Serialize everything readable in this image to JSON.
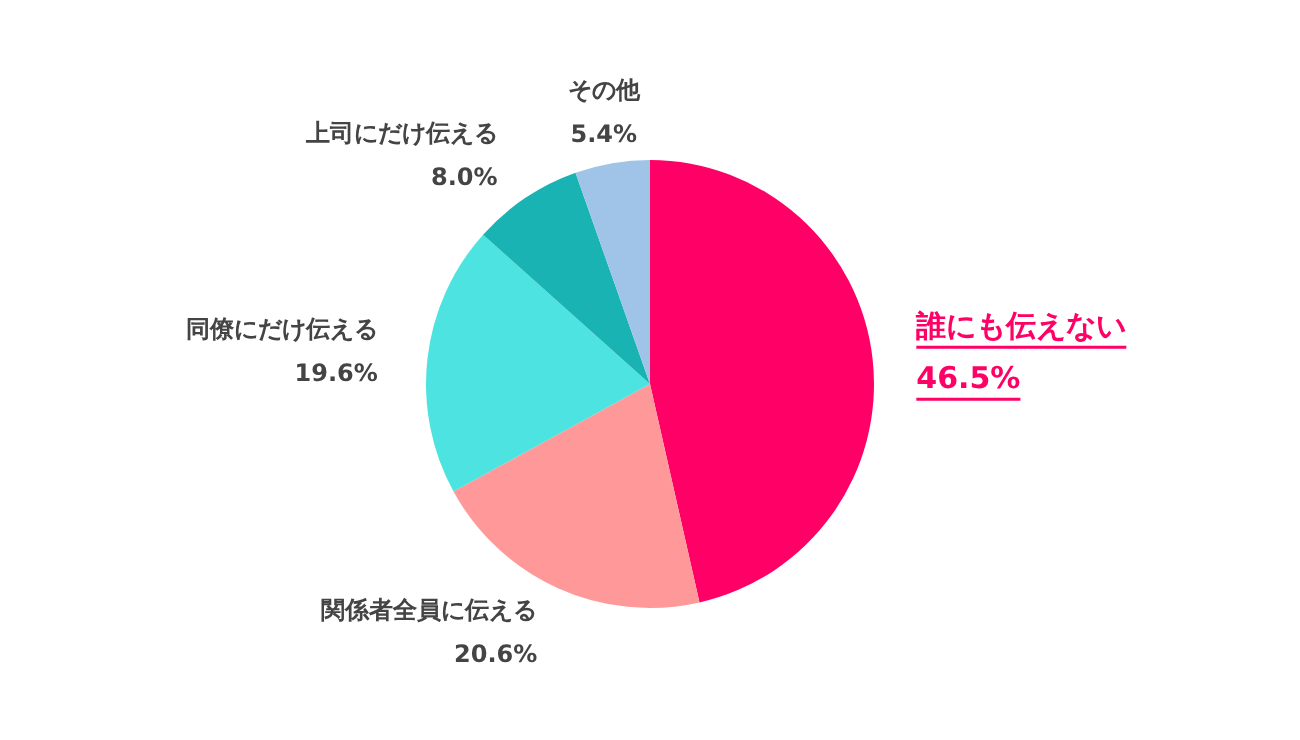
{
  "chart_data": {
    "type": "pie",
    "categories": [
      "誰にも伝えない",
      "関係者全員に伝える",
      "同僚にだけ伝える",
      "上司にだけ伝える",
      "その他"
    ],
    "values": [
      46.5,
      20.6,
      19.6,
      8.0,
      5.4
    ],
    "value_labels": [
      "46.5%",
      "20.6%",
      "19.6%",
      "8.0%",
      "5.4%"
    ],
    "colors": [
      "#ff0066",
      "#ff9999",
      "#4de3e0",
      "#1ab3b3",
      "#a0c4e8"
    ],
    "legend": false
  }
}
